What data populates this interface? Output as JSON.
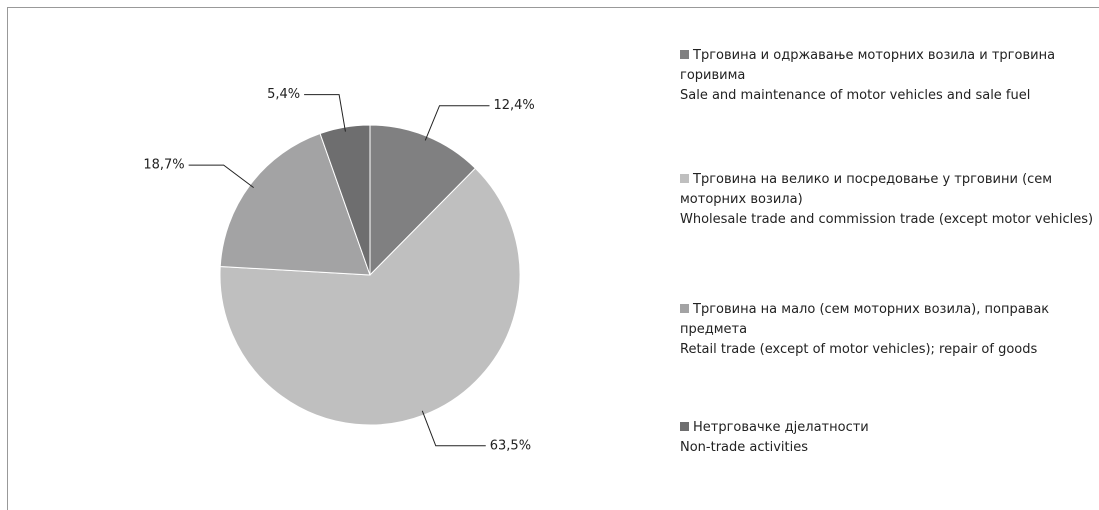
{
  "chart_data": {
    "type": "pie",
    "categories": [
      "Трговина и одржавање моторних возила и трговина горивима",
      "Трговина на велико и посредовање у трговини (сем моторних возила)",
      "Трговина на мало (сем моторних возила), поправак предмета",
      "Нетрговачке дјелатности"
    ],
    "categories_en": [
      "Sale and maintenance  of motor vehicles and sale fuel",
      "Wholesale trade and commission trade (except motor vehicles)",
      "Retail trade (except of motor vehicles); repair of goods",
      "Non-trade activities"
    ],
    "values": [
      12.4,
      63.5,
      18.7,
      5.4
    ],
    "value_labels": [
      "12,4%",
      "63,5%",
      "18,7%",
      "5,4%"
    ],
    "colors": [
      "#808081",
      "#bfbfbf",
      "#a3a3a4",
      "#6e6e6f"
    ]
  }
}
